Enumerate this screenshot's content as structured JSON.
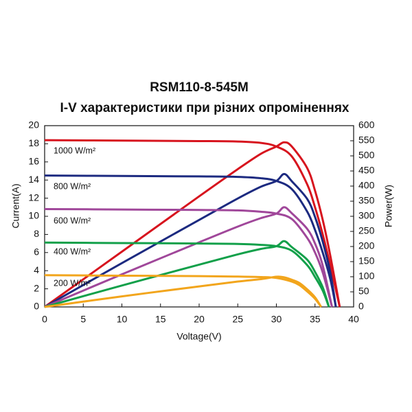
{
  "chart_data": {
    "type": "line",
    "title": "RSM110-8-545M",
    "subtitle": "I-V характеристики при різних опроміненнях",
    "x_label": "Voltage(V)",
    "y_label": "Current(A)",
    "y2_label": "Power(W)",
    "xlim": [
      0,
      40
    ],
    "xticks": [
      0,
      5,
      10,
      15,
      20,
      25,
      30,
      35,
      40
    ],
    "ylim": [
      0,
      20
    ],
    "yticks": [
      0,
      2,
      4,
      6,
      8,
      10,
      12,
      14,
      16,
      18,
      20
    ],
    "y2lim": [
      0,
      600
    ],
    "y2ticks": [
      0,
      50,
      100,
      150,
      200,
      250,
      300,
      350,
      400,
      450,
      500,
      550,
      600
    ],
    "grid": false,
    "annotations": [
      "1000 W/m²",
      "800 W/m²",
      "600 W/m²",
      "400 W/m²",
      "200 W/m²"
    ],
    "series": [
      {
        "name": "1000 W/m²",
        "color": "#d7141e",
        "x": [
          0,
          10,
          20,
          25,
          28,
          30,
          32,
          34,
          35,
          36,
          37,
          38.2
        ],
        "values": [
          18.4,
          18.35,
          18.3,
          18.25,
          18.1,
          17.7,
          16.6,
          13.5,
          11,
          8,
          4.5,
          0
        ]
      },
      {
        "color": "#d7141e",
        "axis": "y2",
        "x": [
          0,
          10,
          20,
          25,
          28,
          30,
          31,
          32,
          34,
          35,
          36,
          37,
          38.2
        ],
        "values": [
          0,
          183,
          366,
          456,
          507,
          531,
          545,
          531,
          459,
          385,
          288,
          167,
          0
        ]
      },
      {
        "name": "800 W/m²",
        "color": "#1c2a80",
        "x": [
          0,
          10,
          20,
          25,
          28,
          30,
          32,
          34,
          35,
          36,
          37,
          37.7
        ],
        "values": [
          14.5,
          14.45,
          14.4,
          14.35,
          14.2,
          13.9,
          13,
          10.5,
          8.5,
          6,
          3,
          0
        ]
      },
      {
        "color": "#1c2a80",
        "axis": "y2",
        "x": [
          0,
          10,
          20,
          25,
          28,
          30,
          31,
          32,
          34,
          35,
          36,
          37,
          37.7
        ],
        "values": [
          0,
          145,
          288,
          359,
          398,
          417,
          440,
          416,
          357,
          298,
          216,
          111,
          0
        ]
      },
      {
        "name": "600 W/m²",
        "color": "#a0479a",
        "x": [
          0,
          10,
          20,
          25,
          28,
          30,
          32,
          34,
          35,
          36,
          37.2
        ],
        "values": [
          10.8,
          10.75,
          10.7,
          10.65,
          10.5,
          10.3,
          9.7,
          7.6,
          6,
          3.8,
          0
        ]
      },
      {
        "color": "#a0479a",
        "axis": "y2",
        "x": [
          0,
          10,
          20,
          25,
          28,
          30,
          31,
          32,
          34,
          35,
          36,
          37.2
        ],
        "values": [
          0,
          108,
          214,
          266,
          294,
          309,
          330,
          310,
          258,
          210,
          137,
          0
        ]
      },
      {
        "name": "400 W/m²",
        "color": "#12a04a",
        "x": [
          0,
          10,
          20,
          25,
          28,
          30,
          32,
          34,
          35,
          36,
          36.8
        ],
        "values": [
          7.1,
          7.05,
          7.0,
          6.95,
          6.85,
          6.7,
          6.2,
          4.6,
          3.3,
          1.8,
          0
        ]
      },
      {
        "color": "#12a04a",
        "axis": "y2",
        "x": [
          0,
          10,
          20,
          25,
          28,
          30,
          31,
          32,
          34,
          35,
          36,
          36.8
        ],
        "values": [
          0,
          71,
          140,
          174,
          192,
          201,
          218,
          198,
          156,
          116,
          65,
          0
        ]
      },
      {
        "name": "200 W/m²",
        "color": "#f2a51c",
        "x": [
          0,
          10,
          20,
          25,
          28,
          30,
          32,
          33,
          34,
          35,
          35.8
        ],
        "values": [
          3.5,
          3.45,
          3.4,
          3.35,
          3.3,
          3.2,
          2.8,
          2.4,
          1.7,
          0.9,
          0
        ]
      },
      {
        "color": "#f2a51c",
        "axis": "y2",
        "x": [
          0,
          10,
          20,
          25,
          28,
          30,
          31,
          32,
          33,
          34,
          35,
          35.8
        ],
        "values": [
          0,
          35,
          68,
          84,
          92,
          100,
          98,
          90,
          79,
          58,
          32,
          0
        ]
      }
    ]
  }
}
